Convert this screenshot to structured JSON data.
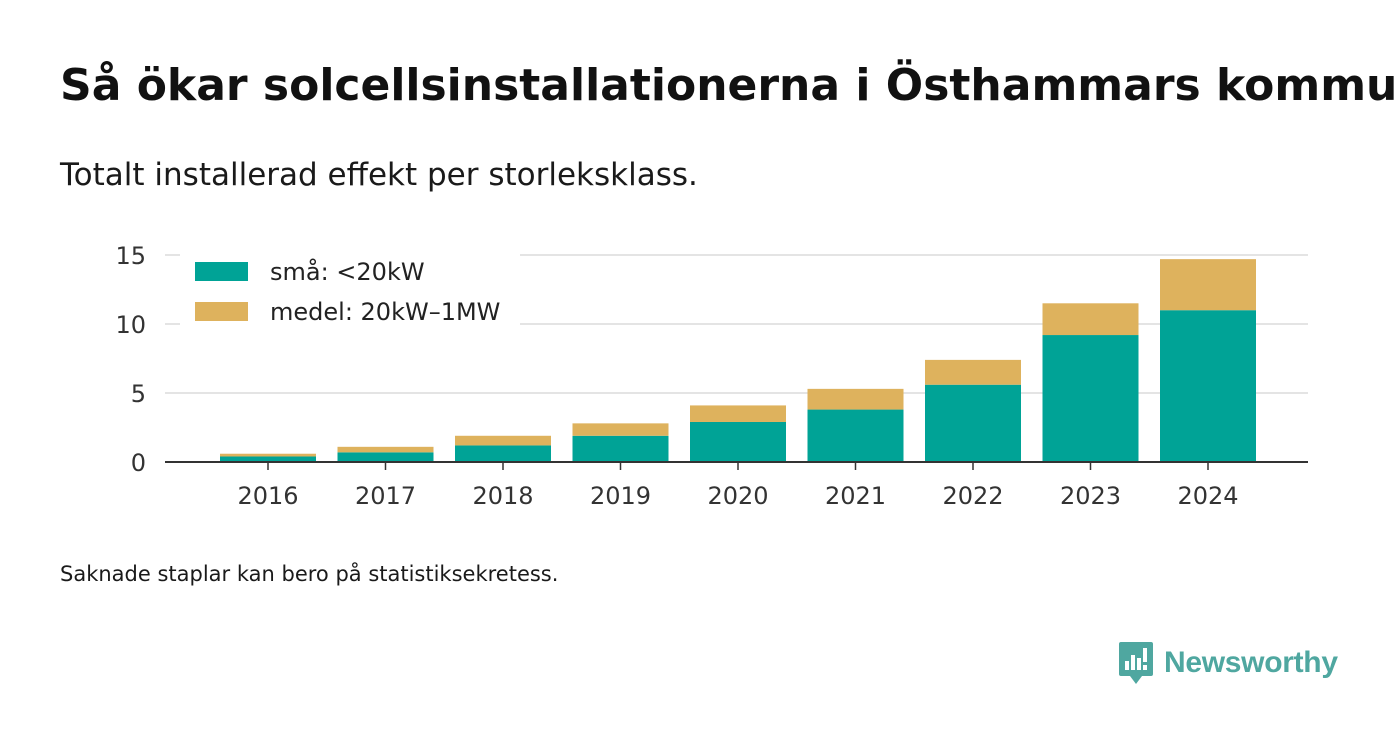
{
  "header": {
    "title": "Så ökar solcellsinstallationerna i Östhammars kommun",
    "subtitle": "Totalt installerad effekt per storleksklass."
  },
  "footnote": "Saknade staplar kan bero på statistiksekretess.",
  "brand": {
    "name": "Newsworthy",
    "logo_icon": "chart-speech-bubble-icon",
    "color": "#4fa7a0"
  },
  "chart_data": {
    "type": "bar",
    "stacked": true,
    "categories": [
      "2016",
      "2017",
      "2018",
      "2019",
      "2020",
      "2021",
      "2022",
      "2023",
      "2024"
    ],
    "series": [
      {
        "name": "små: <20kW",
        "color": "#00a396",
        "values": [
          0.4,
          0.7,
          1.2,
          1.9,
          2.9,
          3.8,
          5.6,
          9.2,
          11.0
        ]
      },
      {
        "name": "medel: 20kW–1MW",
        "color": "#deb25d",
        "values": [
          0.2,
          0.4,
          0.7,
          0.9,
          1.2,
          1.5,
          1.8,
          2.3,
          3.7
        ]
      }
    ],
    "yticks": [
      "0",
      "5",
      "10",
      "15"
    ],
    "ylim": [
      0,
      15.5
    ],
    "grid": true,
    "legend_position": "top-left",
    "xlabel": "",
    "ylabel": ""
  }
}
